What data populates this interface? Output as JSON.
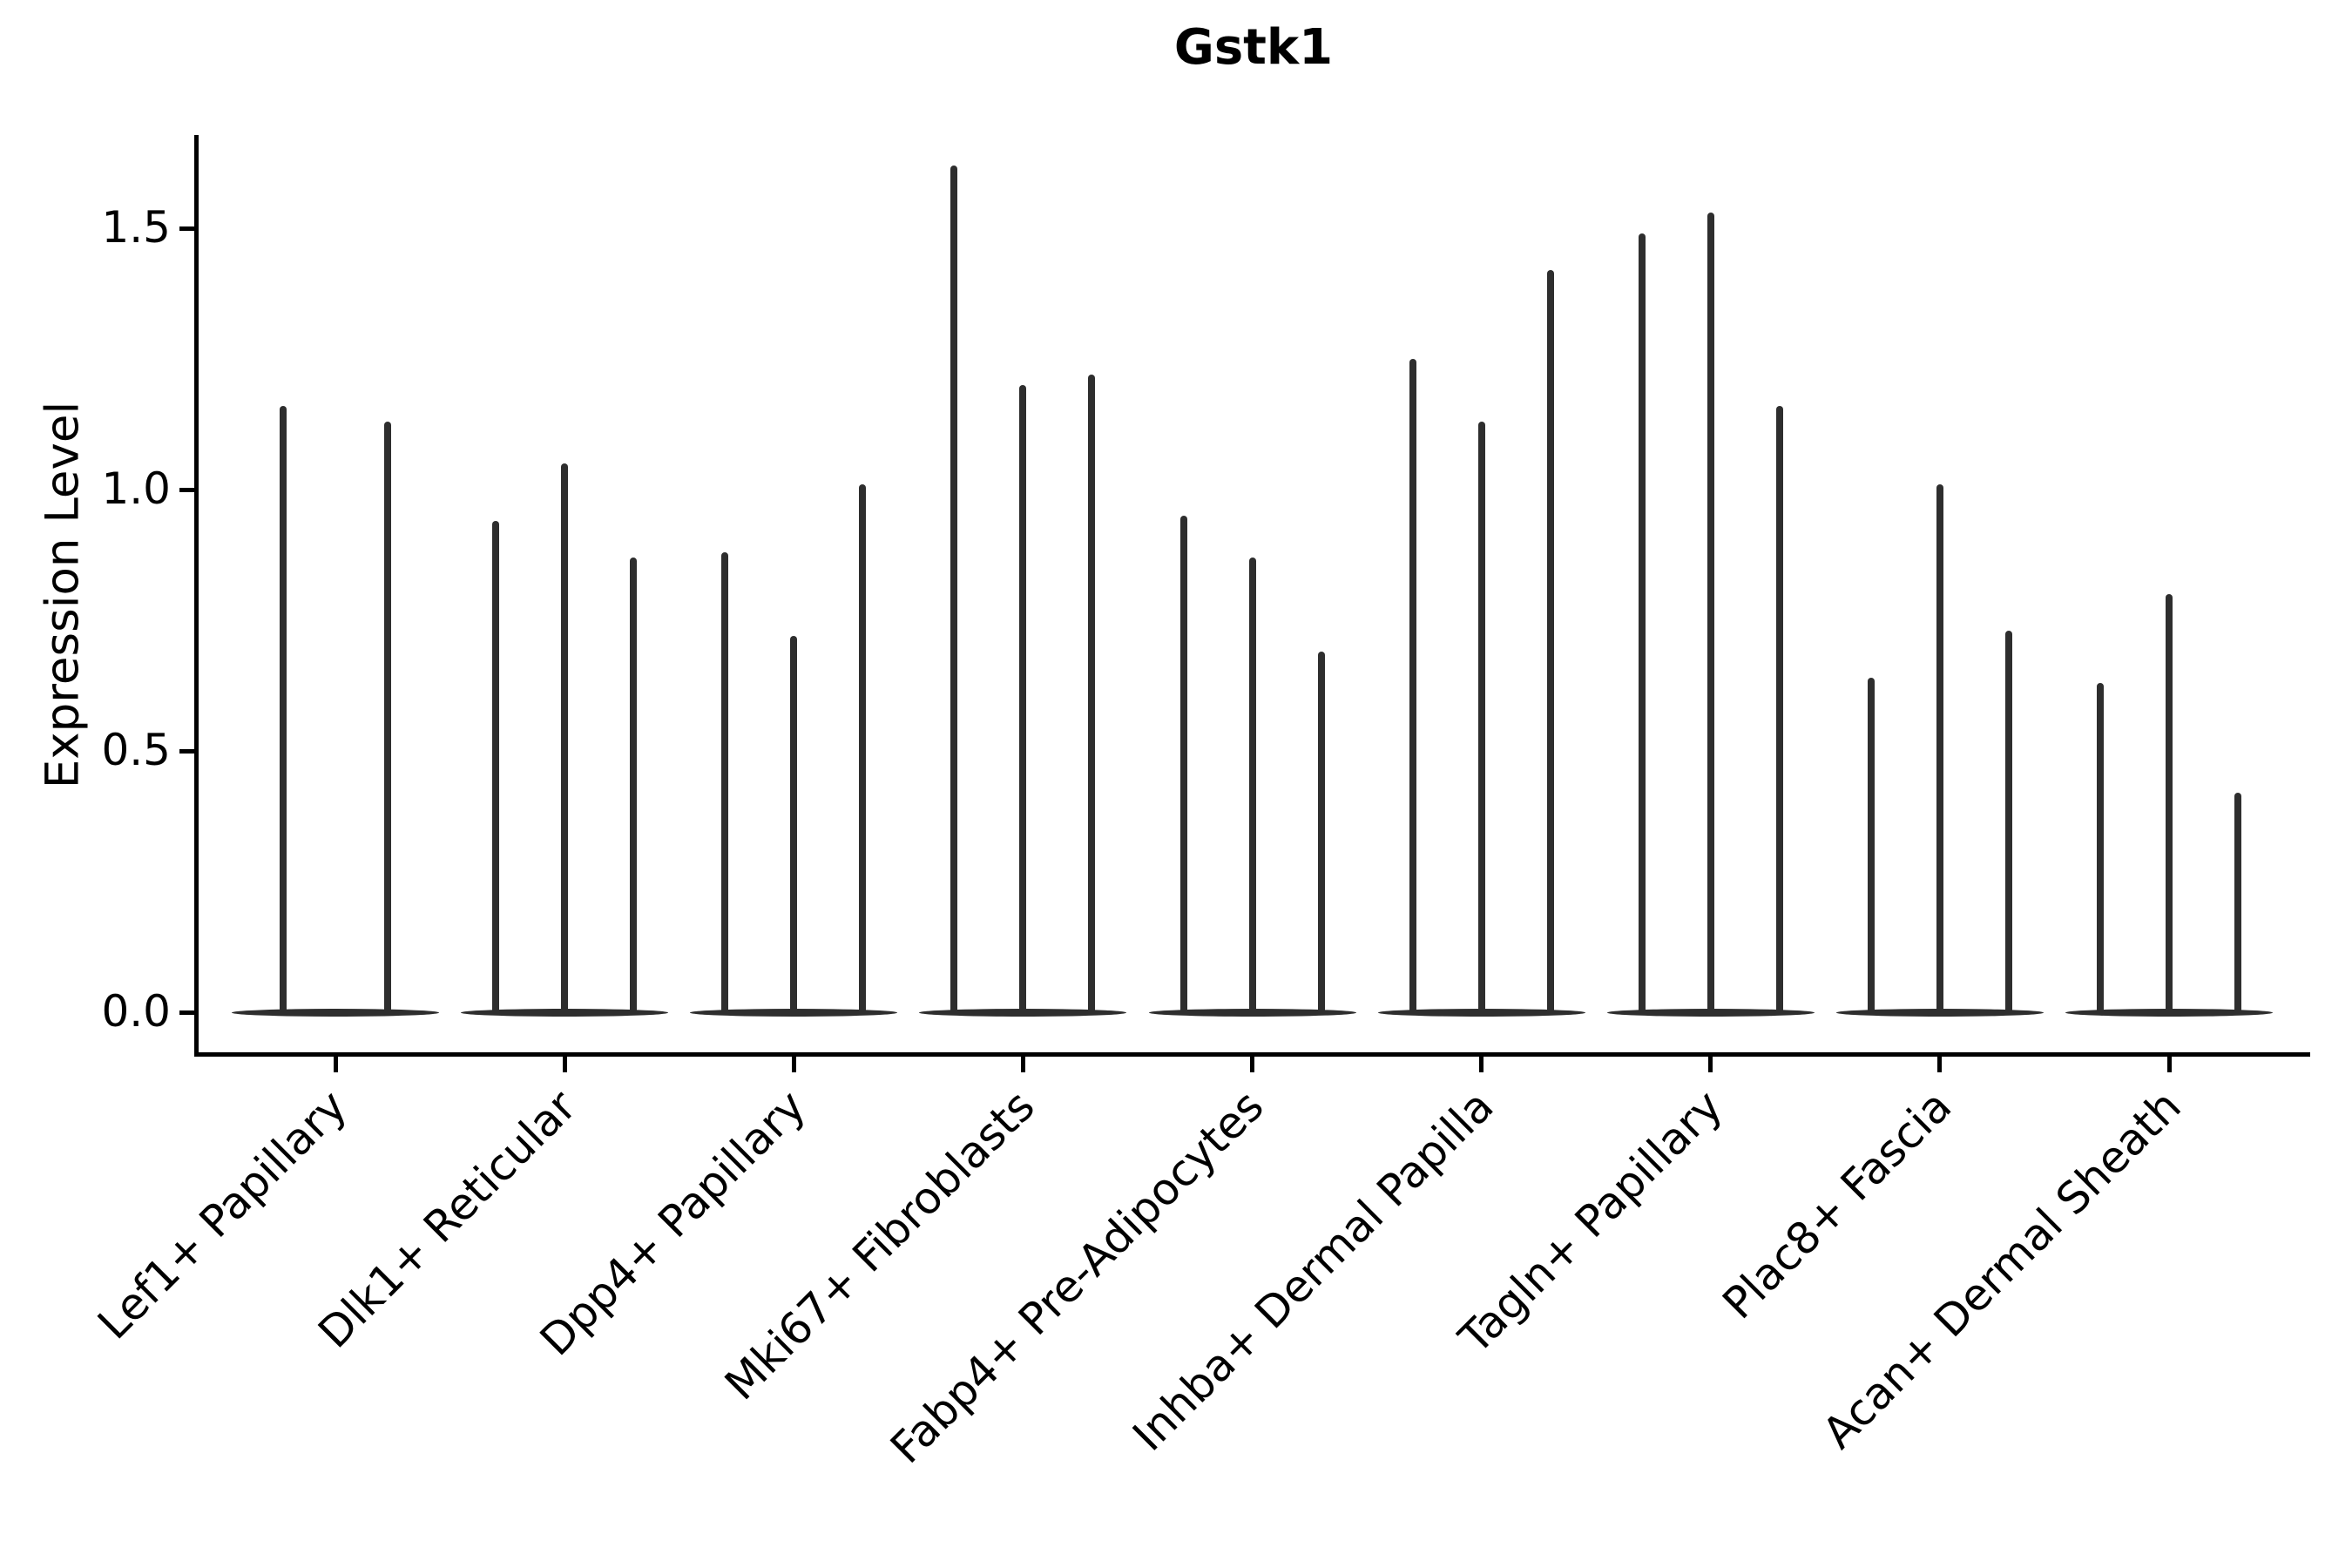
{
  "figure": {
    "title": "Gstk1",
    "y_axis_label": "Expression Level"
  },
  "chart_data": {
    "type": "violin",
    "title": "Gstk1",
    "xlabel": "",
    "ylabel": "Expression Level",
    "ylim": [
      -0.08,
      1.68
    ],
    "yticks": [
      {
        "value": 0.0,
        "label": "0.0"
      },
      {
        "value": 0.5,
        "label": "0.5"
      },
      {
        "value": 1.0,
        "label": "1.0"
      },
      {
        "value": 1.5,
        "label": "1.5"
      }
    ],
    "grid": false,
    "legend": "none",
    "distribution_note": "Each violin has nearly all density at 0 (wide flat base) with a thin vertical tail reaching its maximum expression value",
    "categories": [
      "Lef1+ Papillary",
      "Dlk1+ Reticular",
      "Dpp4+ Papillary",
      "Mki67+ Fibroblasts",
      "Fabp4+ Pre-Adipocytes",
      "Inhba+ Dermal Papilla",
      "Tagln+ Papillary",
      "Plac8+ Fascia",
      "Acan+ Dermal Sheath"
    ],
    "groups": [
      {
        "label": "Lef1+ Papillary",
        "violin_maxima": [
          1.16,
          1.13
        ]
      },
      {
        "label": "Dlk1+ Reticular",
        "violin_maxima": [
          0.94,
          1.05,
          0.87
        ]
      },
      {
        "label": "Dpp4+ Papillary",
        "violin_maxima": [
          0.88,
          0.72,
          1.01
        ]
      },
      {
        "label": "Mki67+ Fibroblasts",
        "violin_maxima": [
          1.62,
          1.2,
          1.22
        ]
      },
      {
        "label": "Fabp4+ Pre-Adipocytes",
        "violin_maxima": [
          0.95,
          0.87,
          0.69
        ]
      },
      {
        "label": "Inhba+ Dermal Papilla",
        "violin_maxima": [
          1.25,
          1.13,
          1.42
        ]
      },
      {
        "label": "Tagln+ Papillary",
        "violin_maxima": [
          1.49,
          1.53,
          1.16
        ]
      },
      {
        "label": "Plac8+ Fascia",
        "violin_maxima": [
          0.64,
          1.01,
          0.73
        ]
      },
      {
        "label": "Acan+ Dermal Sheath",
        "violin_maxima": [
          0.63,
          0.8,
          0.42
        ]
      }
    ]
  },
  "style": {
    "violin_color": "#2e2e2e",
    "axis_color": "#000000",
    "text_color": "#000000",
    "background_color": "#ffffff"
  }
}
